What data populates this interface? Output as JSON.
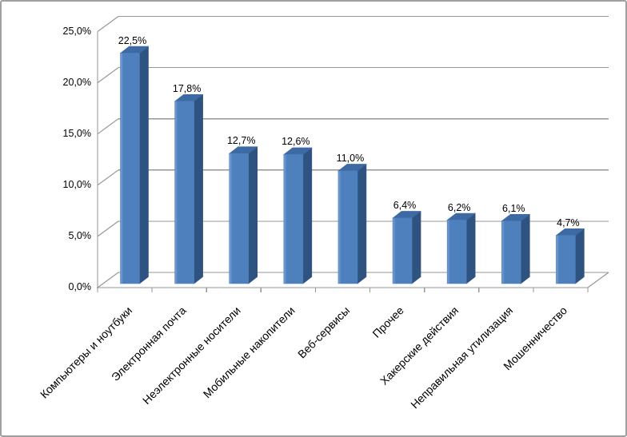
{
  "window": {
    "background": "#ffffff",
    "border_color": "#9f9f9f"
  },
  "chart_data": {
    "type": "bar",
    "variant": "3d-column",
    "title": "",
    "xlabel": "",
    "ylabel": "",
    "legend": "none",
    "grid": "horizontal",
    "categories": [
      "Компьютеры и ноутбуки",
      "Электронная почта",
      "Неэлектронные носители",
      "Мобильные накопители",
      "Веб-сервисы",
      "Прочее",
      "Хакерские действия",
      "Неправильная утилизация",
      "Мошенничество"
    ],
    "values": [
      22.5,
      17.8,
      12.7,
      12.6,
      11.0,
      6.4,
      6.2,
      6.1,
      4.7
    ],
    "value_labels": [
      "22,5%",
      "17,8%",
      "12,7%",
      "12,6%",
      "11,0%",
      "6,4%",
      "6,2%",
      "6,1%",
      "4,7%"
    ],
    "ylim": [
      0,
      25
    ],
    "yticks": [
      0,
      5,
      10,
      15,
      20,
      25
    ],
    "ytick_labels": [
      "0,0%",
      "5,0%",
      "10,0%",
      "15,0%",
      "20,0%",
      "25,0%"
    ],
    "colors": {
      "bar_front": "#4d80bd",
      "bar_front_highlight": "#7ba2d6",
      "bar_side": "#2f5380",
      "bar_top": "#3e6aa3",
      "gridline": "#969696",
      "axis": "#969696",
      "label_text": "#000000"
    }
  }
}
